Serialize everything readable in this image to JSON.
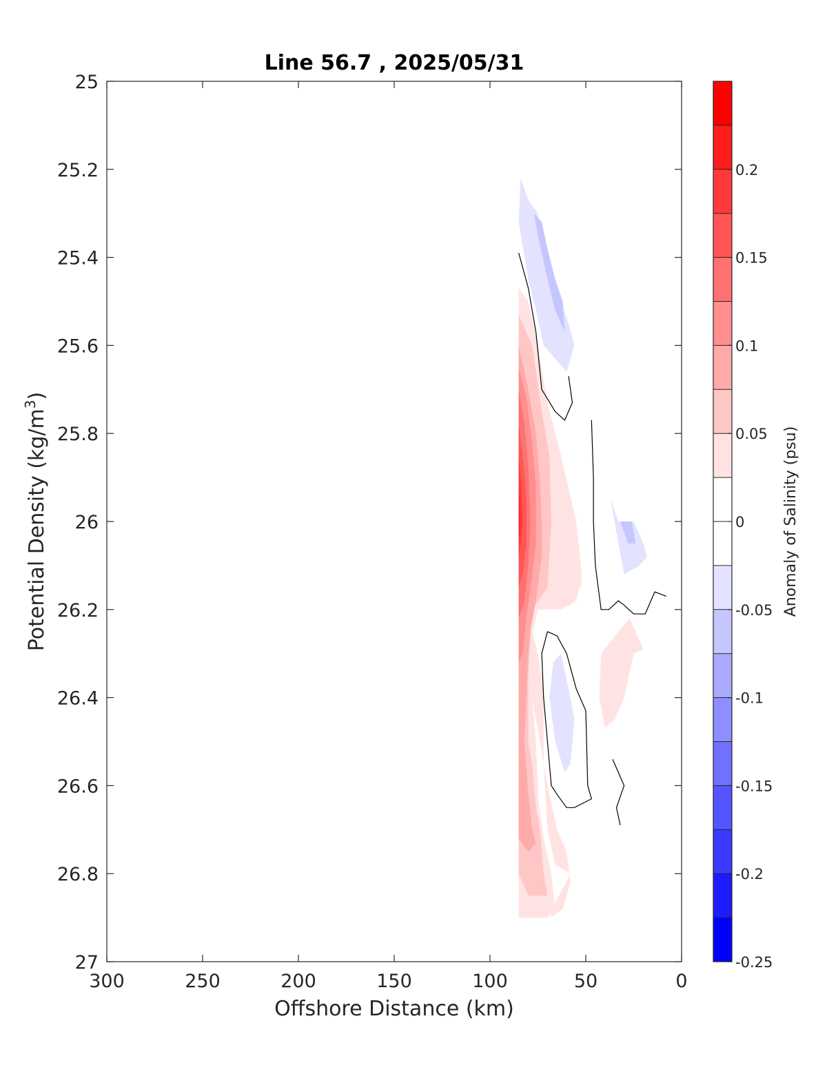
{
  "chart_data": {
    "type": "contour",
    "title": "Line 56.7 , 2025/05/31",
    "xlabel": "Offshore Distance (km)",
    "ylabel_main": "Potential Density (kg/m",
    "ylabel_sup": "3",
    "ylabel_close": ")",
    "colorbar_label": "Anomaly of Salinity (psu)",
    "x_range": [
      300,
      0
    ],
    "y_range": [
      25,
      27
    ],
    "x_reversed": true,
    "y_reversed": true,
    "x_ticks": [
      300,
      250,
      200,
      150,
      100,
      50,
      0
    ],
    "x_tick_labels": [
      "300",
      "250",
      "200",
      "150",
      "100",
      "50",
      "0"
    ],
    "y_ticks": [
      25,
      25.2,
      25.4,
      25.6,
      25.8,
      26,
      26.2,
      26.4,
      26.6,
      26.8,
      27
    ],
    "y_tick_labels": [
      "25",
      "25.2",
      "25.4",
      "25.6",
      "25.8",
      "26",
      "26.2",
      "26.4",
      "26.6",
      "26.8",
      "27"
    ],
    "colorbar": {
      "range": [
        -0.25,
        0.25
      ],
      "ticks": [
        0.2,
        0.15,
        0.1,
        0.05,
        0,
        -0.05,
        -0.1,
        -0.15,
        -0.2,
        -0.25
      ],
      "tick_labels": [
        "0.2",
        "0.15",
        "0.1",
        "0.05",
        "0",
        "-0.05",
        "-0.1",
        "-0.15",
        "-0.2",
        "-0.25"
      ],
      "levels": [
        {
          "min": 0.225,
          "max": 0.25,
          "color": "#ff0000"
        },
        {
          "min": 0.2,
          "max": 0.225,
          "color": "#ff1c1c"
        },
        {
          "min": 0.175,
          "max": 0.2,
          "color": "#ff3939"
        },
        {
          "min": 0.15,
          "max": 0.175,
          "color": "#ff5555"
        },
        {
          "min": 0.125,
          "max": 0.15,
          "color": "#ff7171"
        },
        {
          "min": 0.1,
          "max": 0.125,
          "color": "#ff8e8e"
        },
        {
          "min": 0.075,
          "max": 0.1,
          "color": "#ffaaaa"
        },
        {
          "min": 0.05,
          "max": 0.075,
          "color": "#ffc6c6"
        },
        {
          "min": 0.025,
          "max": 0.05,
          "color": "#ffe3e3"
        },
        {
          "min": 0,
          "max": 0.025,
          "color": "#ffffff"
        },
        {
          "min": -0.025,
          "max": 0,
          "color": "#ffffff"
        },
        {
          "min": -0.05,
          "max": -0.025,
          "color": "#e3e3ff"
        },
        {
          "min": -0.075,
          "max": -0.05,
          "color": "#c6c6ff"
        },
        {
          "min": -0.1,
          "max": -0.075,
          "color": "#aaaaff"
        },
        {
          "min": -0.125,
          "max": -0.1,
          "color": "#8e8eff"
        },
        {
          "min": -0.15,
          "max": -0.125,
          "color": "#7171ff"
        },
        {
          "min": -0.175,
          "max": -0.15,
          "color": "#5555ff"
        },
        {
          "min": -0.2,
          "max": -0.175,
          "color": "#3939ff"
        },
        {
          "min": -0.225,
          "max": -0.2,
          "color": "#1c1cff"
        },
        {
          "min": -0.25,
          "max": -0.225,
          "color": "#0000ff"
        }
      ]
    },
    "filled_regions": [
      {
        "name": "fill-pos-1",
        "color": "#ffe3e3",
        "points": [
          [
            85,
            25.47
          ],
          [
            80,
            25.5
          ],
          [
            75,
            25.6
          ],
          [
            70,
            25.73
          ],
          [
            63,
            25.85
          ],
          [
            55,
            26.0
          ],
          [
            52,
            26.12
          ],
          [
            55,
            26.18
          ],
          [
            63,
            26.2
          ],
          [
            75,
            26.2
          ],
          [
            80,
            26.3
          ],
          [
            76,
            26.5
          ],
          [
            74,
            26.7
          ],
          [
            70,
            26.8
          ],
          [
            68,
            26.9
          ],
          [
            62,
            26.88
          ],
          [
            60,
            26.85
          ],
          [
            58,
            26.82
          ],
          [
            60,
            26.75
          ],
          [
            65,
            26.7
          ],
          [
            70,
            26.6
          ],
          [
            78,
            26.4
          ],
          [
            82,
            26.2
          ],
          [
            76,
            26.28
          ],
          [
            72,
            26.38
          ],
          [
            72,
            26.55
          ],
          [
            70,
            26.7
          ],
          [
            66,
            26.78
          ],
          [
            58,
            26.8
          ],
          [
            70,
            26.9
          ],
          [
            80,
            26.9
          ],
          [
            85,
            26.88
          ]
        ]
      },
      {
        "name": "fill-pos-2",
        "color": "#ffe3e3",
        "points": [
          [
            85,
            25.47
          ],
          [
            80,
            25.52
          ],
          [
            76,
            25.62
          ],
          [
            70,
            25.75
          ],
          [
            62,
            25.88
          ],
          [
            55,
            26.02
          ],
          [
            52,
            26.14
          ],
          [
            58,
            26.19
          ],
          [
            66,
            26.2
          ],
          [
            76,
            26.16
          ],
          [
            80,
            26.18
          ],
          [
            79,
            26.4
          ],
          [
            77,
            26.56
          ],
          [
            72,
            26.72
          ],
          [
            68,
            26.8
          ],
          [
            66,
            26.88
          ],
          [
            70,
            26.9
          ],
          [
            85,
            26.9
          ]
        ]
      },
      {
        "name": "fill-pos-3",
        "color": "#ffc6c6",
        "points": [
          [
            85,
            25.53
          ],
          [
            78,
            25.6
          ],
          [
            73,
            25.75
          ],
          [
            69,
            25.85
          ],
          [
            68,
            26.0
          ],
          [
            70,
            26.15
          ],
          [
            78,
            26.2
          ],
          [
            80,
            26.35
          ],
          [
            80,
            26.5
          ],
          [
            78,
            26.55
          ],
          [
            76,
            26.65
          ],
          [
            74,
            26.7
          ],
          [
            72,
            26.8
          ],
          [
            70,
            26.85
          ],
          [
            80,
            26.85
          ],
          [
            85,
            26.8
          ]
        ]
      },
      {
        "name": "fill-pos-4",
        "color": "#ffaaaa",
        "points": [
          [
            85,
            25.6
          ],
          [
            80,
            25.7
          ],
          [
            76,
            25.8
          ],
          [
            74,
            25.9
          ],
          [
            73,
            26.0
          ],
          [
            73,
            26.08
          ],
          [
            76,
            26.18
          ],
          [
            79,
            26.25
          ],
          [
            80,
            26.3
          ],
          [
            82,
            26.5
          ],
          [
            80,
            26.62
          ],
          [
            78,
            26.7
          ],
          [
            76,
            26.73
          ],
          [
            80,
            26.75
          ],
          [
            85,
            26.72
          ]
        ]
      },
      {
        "name": "fill-pos-5",
        "color": "#ff8e8e",
        "points": [
          [
            85,
            25.65
          ],
          [
            81,
            25.72
          ],
          [
            78,
            25.82
          ],
          [
            76,
            25.92
          ],
          [
            76,
            26.05
          ],
          [
            78,
            26.12
          ],
          [
            81,
            26.22
          ],
          [
            83,
            26.3
          ],
          [
            85,
            26.32
          ]
        ]
      },
      {
        "name": "fill-pos-6",
        "color": "#ff7171",
        "points": [
          [
            85,
            25.7
          ],
          [
            82,
            25.78
          ],
          [
            80,
            25.88
          ],
          [
            79,
            26.0
          ],
          [
            80,
            26.1
          ],
          [
            82,
            26.18
          ],
          [
            85,
            26.22
          ]
        ]
      },
      {
        "name": "fill-pos-7",
        "color": "#ff5555",
        "points": [
          [
            85,
            25.78
          ],
          [
            83,
            25.85
          ],
          [
            81,
            25.95
          ],
          [
            81,
            26.05
          ],
          [
            83,
            26.12
          ],
          [
            85,
            26.15
          ]
        ]
      },
      {
        "name": "fill-pos-8",
        "color": "#ff3939",
        "points": [
          [
            85,
            25.85
          ],
          [
            84,
            25.9
          ],
          [
            83,
            26.0
          ],
          [
            84,
            26.05
          ],
          [
            85,
            26.08
          ]
        ]
      },
      {
        "name": "fill-pos-9",
        "color": "#ff1c1c",
        "points": [
          [
            85,
            25.92
          ],
          [
            84.5,
            25.97
          ],
          [
            84.5,
            26.02
          ],
          [
            85,
            26.04
          ]
        ]
      },
      {
        "name": "fill-pos-10",
        "color": "#ffe3e3",
        "points": [
          [
            42,
            26.3
          ],
          [
            33,
            26.25
          ],
          [
            27,
            26.22
          ],
          [
            20,
            26.29
          ],
          [
            25,
            26.3
          ],
          [
            30,
            26.4
          ],
          [
            35,
            26.45
          ],
          [
            40,
            26.47
          ],
          [
            43,
            26.4
          ]
        ]
      },
      {
        "name": "fill-neg-1",
        "color": "#e3e3ff",
        "points": [
          [
            84,
            25.22
          ],
          [
            85,
            25.32
          ],
          [
            80,
            25.45
          ],
          [
            76,
            25.52
          ],
          [
            72,
            25.6
          ],
          [
            60,
            25.66
          ],
          [
            56,
            25.6
          ],
          [
            59,
            25.55
          ],
          [
            63,
            25.5
          ],
          [
            67,
            25.45
          ],
          [
            70,
            25.4
          ],
          [
            75,
            25.3
          ],
          [
            80,
            25.27
          ]
        ]
      },
      {
        "name": "fill-neg-2",
        "color": "#c6c6ff",
        "points": [
          [
            77,
            25.3
          ],
          [
            75,
            25.35
          ],
          [
            70,
            25.45
          ],
          [
            66,
            25.52
          ],
          [
            61,
            25.57
          ],
          [
            62,
            25.5
          ],
          [
            66,
            25.45
          ],
          [
            70,
            25.38
          ],
          [
            73,
            25.32
          ]
        ]
      },
      {
        "name": "fill-neg-3",
        "color": "#e3e3ff",
        "points": [
          [
            42,
            25.87
          ],
          [
            37,
            25.95
          ],
          [
            33,
            26.05
          ],
          [
            30,
            26.12
          ],
          [
            22,
            26.1
          ],
          [
            18,
            26.08
          ],
          [
            20,
            26.05
          ],
          [
            25,
            26.0
          ],
          [
            33,
            26.0
          ],
          [
            37,
            25.95
          ]
        ]
      },
      {
        "name": "fill-neg-4",
        "color": "#c6c6ff",
        "points": [
          [
            32,
            26.0
          ],
          [
            26,
            26.0
          ],
          [
            24,
            26.05
          ],
          [
            28,
            26.05
          ]
        ]
      },
      {
        "name": "fill-neg-5",
        "color": "#e3e3ff",
        "points": [
          [
            63,
            26.3
          ],
          [
            58,
            26.4
          ],
          [
            56,
            26.45
          ],
          [
            58,
            26.55
          ],
          [
            61,
            26.57
          ],
          [
            66,
            26.5
          ],
          [
            69,
            26.4
          ],
          [
            67,
            26.32
          ]
        ]
      }
    ],
    "zero_contours": [
      {
        "name": "contour-upper",
        "points": [
          [
            85,
            25.39
          ],
          [
            80,
            25.47
          ],
          [
            76,
            25.57
          ],
          [
            73,
            25.7
          ],
          [
            66,
            25.75
          ],
          [
            61,
            25.77
          ],
          [
            57,
            25.73
          ],
          [
            59,
            25.67
          ]
        ]
      },
      {
        "name": "contour-right",
        "points": [
          [
            47,
            25.77
          ],
          [
            46,
            25.9
          ],
          [
            46,
            26.0
          ],
          [
            45,
            26.1
          ],
          [
            42,
            26.2
          ],
          [
            38,
            26.2
          ],
          [
            33,
            26.18
          ],
          [
            30,
            26.19
          ],
          [
            25,
            26.21
          ],
          [
            19,
            26.21
          ],
          [
            14,
            26.16
          ],
          [
            8,
            26.17
          ]
        ]
      },
      {
        "name": "contour-loop",
        "points": [
          [
            70,
            26.25
          ],
          [
            65,
            26.26
          ],
          [
            60,
            26.3
          ],
          [
            55,
            26.38
          ],
          [
            50,
            26.43
          ],
          [
            49,
            26.6
          ],
          [
            47,
            26.63
          ],
          [
            56,
            26.65
          ],
          [
            60,
            26.65
          ],
          [
            65,
            26.62
          ],
          [
            68,
            26.6
          ],
          [
            70,
            26.5
          ],
          [
            72,
            26.4
          ],
          [
            73,
            26.3
          ],
          [
            70,
            26.25
          ]
        ]
      },
      {
        "name": "contour-lower-hook",
        "points": [
          [
            36,
            26.54
          ],
          [
            33,
            26.57
          ],
          [
            30,
            26.6
          ],
          [
            34,
            26.65
          ],
          [
            32,
            26.69
          ]
        ]
      }
    ]
  }
}
